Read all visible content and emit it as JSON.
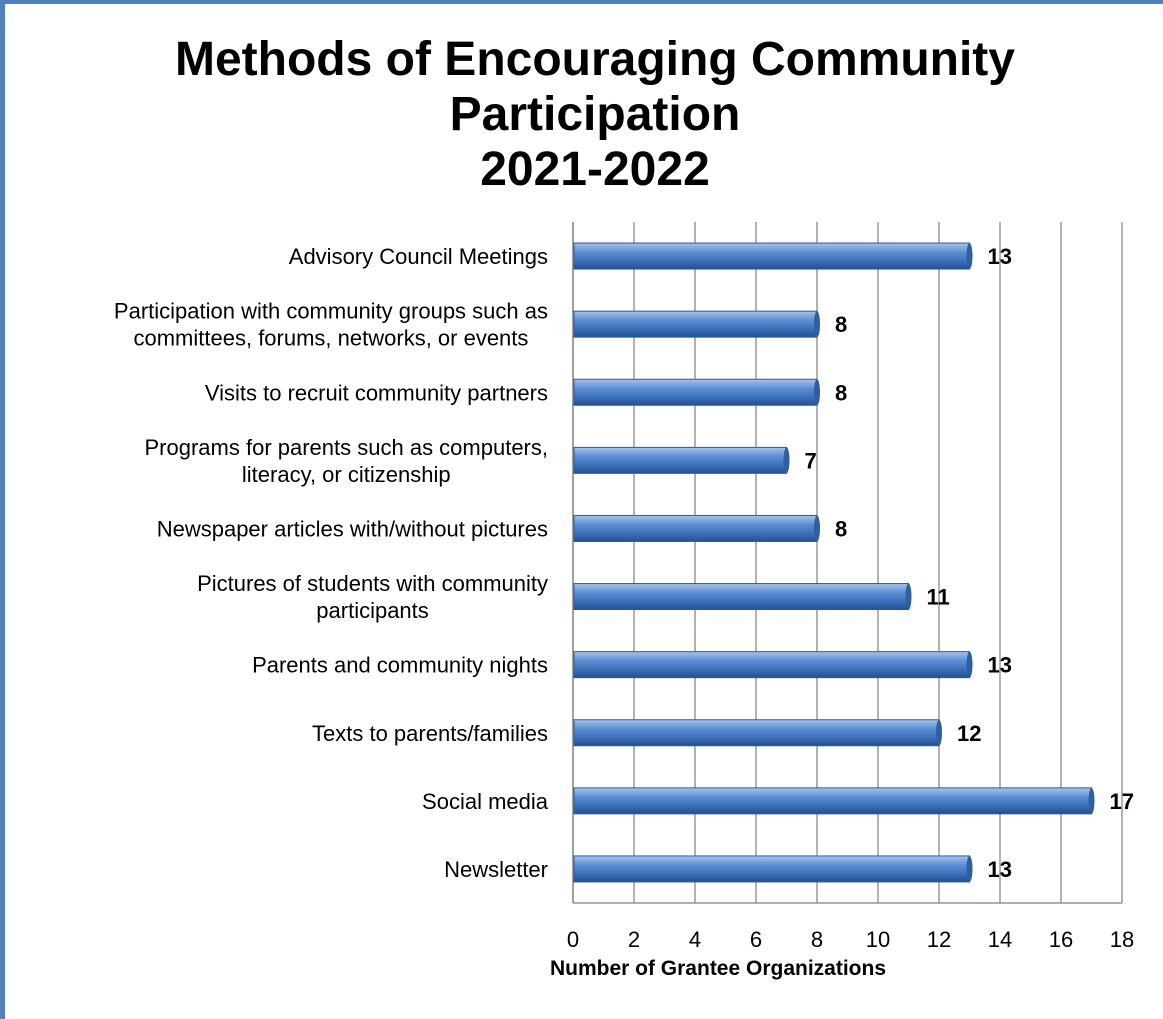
{
  "chart_data": {
    "type": "bar",
    "orientation": "horizontal",
    "title_lines": [
      "Methods of Encouraging Community",
      "Participation",
      "2021-2022"
    ],
    "xlabel": "Number of Grantee Organizations",
    "ylabel": "",
    "xlim": [
      0,
      18
    ],
    "xticks": [
      0,
      2,
      4,
      6,
      8,
      10,
      12,
      14,
      16,
      18
    ],
    "grid": "vertical",
    "legend": "none",
    "bar_color": "#4f81bd",
    "categories": [
      [
        "Advisory Council Meetings"
      ],
      [
        "Participation with community groups such as",
        "committees, forums, networks, or events"
      ],
      [
        "Visits to recruit community partners"
      ],
      [
        "Programs for parents such as computers,",
        "literacy, or citizenship"
      ],
      [
        "Newspaper articles with/without pictures"
      ],
      [
        "Pictures of students with community",
        "participants"
      ],
      [
        "Parents and community nights"
      ],
      [
        "Texts to parents/families"
      ],
      [
        "Social media"
      ],
      [
        "Newsletter"
      ]
    ],
    "values": [
      13,
      8,
      8,
      7,
      8,
      11,
      13,
      12,
      17,
      13
    ]
  }
}
